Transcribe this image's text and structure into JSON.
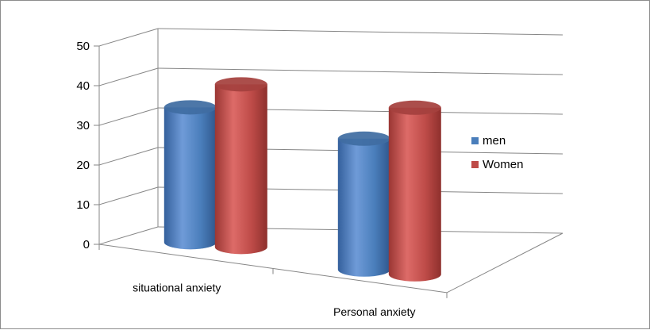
{
  "chart_data": {
    "type": "bar",
    "style": "3d-cylinder",
    "categories": [
      "situational anxiety",
      "Personal anxiety"
    ],
    "series": [
      {
        "name": "men",
        "values": [
          34,
          33
        ],
        "color": "#4a7ebb"
      },
      {
        "name": "Women",
        "values": [
          41,
          42
        ],
        "color": "#be4b48"
      }
    ],
    "ylim": [
      0,
      50
    ],
    "yticks": [
      0,
      10,
      20,
      30,
      40,
      50
    ],
    "grid": true,
    "legend": "right"
  }
}
